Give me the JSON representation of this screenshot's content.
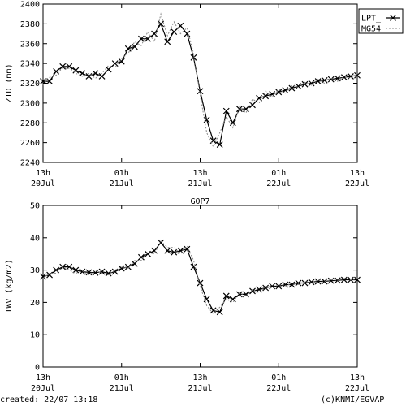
{
  "footer": {
    "created": "created: 22/07 13:18",
    "credit": "(c)KNMI/EGVAP"
  },
  "colors": {
    "lpt": "#000000",
    "mg54": "#888888",
    "axes": "#000000"
  },
  "chart_data": [
    {
      "type": "line",
      "title": "",
      "ylabel": "ZTD (mm)",
      "xlabel": "",
      "ylim": [
        2240,
        2400
      ],
      "xlim": [
        0,
        48
      ],
      "yticks": [
        2240,
        2260,
        2280,
        2300,
        2320,
        2340,
        2360,
        2380,
        2400
      ],
      "xticks": [
        {
          "x": 0,
          "line1": "13h",
          "line2": "20Jul"
        },
        {
          "x": 12,
          "line1": "01h",
          "line2": "21Jul"
        },
        {
          "x": 24,
          "line1": "13h",
          "line2": "21Jul"
        },
        {
          "x": 36,
          "line1": "01h",
          "line2": "22Jul"
        },
        {
          "x": 48,
          "line1": "13h",
          "line2": "22Jul"
        }
      ],
      "grid": false,
      "legend_position": "outside-top-right",
      "series": [
        {
          "name": "LPT_",
          "style": "solid-x",
          "x": [
            0,
            1,
            2,
            3,
            4,
            5,
            6,
            7,
            8,
            9,
            10,
            11,
            12,
            13,
            14,
            15,
            16,
            17,
            18,
            19,
            20,
            21,
            22,
            23,
            24,
            25,
            26,
            27,
            28,
            29,
            30,
            31,
            32,
            33,
            34,
            35,
            36,
            37,
            38,
            39,
            40,
            41,
            42,
            43,
            44,
            45,
            46,
            47,
            48
          ],
          "y": [
            2322,
            2322,
            2332,
            2337,
            2337,
            2333,
            2330,
            2327,
            2330,
            2327,
            2334,
            2340,
            2342,
            2355,
            2357,
            2365,
            2365,
            2370,
            2380,
            2362,
            2372,
            2378,
            2370,
            2346,
            2312,
            2283,
            2262,
            2258,
            2292,
            2280,
            2294,
            2294,
            2298,
            2305,
            2307,
            2309,
            2311,
            2313,
            2315,
            2317,
            2319,
            2320,
            2322,
            2323,
            2324,
            2325,
            2326,
            2327,
            2328
          ]
        },
        {
          "name": "MG54",
          "style": "dashed",
          "x": [
            0,
            1,
            2,
            3,
            4,
            5,
            6,
            7,
            8,
            9,
            10,
            11,
            12,
            13,
            14,
            15,
            16,
            17,
            18,
            19,
            20,
            21,
            22,
            23,
            24,
            25,
            26,
            27,
            28,
            29,
            30,
            31,
            32,
            33,
            34,
            35,
            36,
            37,
            38,
            39,
            40,
            41,
            42,
            43,
            44,
            45,
            46,
            47,
            48
          ],
          "y": [
            2318,
            2326,
            2328,
            2336,
            2335,
            2330,
            2327,
            2330,
            2325,
            2330,
            2338,
            2336,
            2345,
            2350,
            2362,
            2358,
            2372,
            2362,
            2390,
            2368,
            2382,
            2370,
            2376,
            2350,
            2308,
            2270,
            2256,
            2270,
            2286,
            2275,
            2296,
            2290,
            2304,
            2300,
            2312,
            2306,
            2314,
            2310,
            2318,
            2316,
            2321,
            2318,
            2324,
            2320,
            2325,
            2322,
            2327,
            2325,
            2329
          ]
        }
      ]
    },
    {
      "type": "line",
      "title": "GOP7",
      "ylabel": "IWV (kg/m2)",
      "xlabel": "",
      "ylim": [
        0,
        50
      ],
      "xlim": [
        0,
        48
      ],
      "yticks": [
        0,
        10,
        20,
        30,
        40,
        50
      ],
      "xticks": [
        {
          "x": 0,
          "line1": "13h",
          "line2": "20Jul"
        },
        {
          "x": 12,
          "line1": "01h",
          "line2": "21Jul"
        },
        {
          "x": 24,
          "line1": "13h",
          "line2": "21Jul"
        },
        {
          "x": 36,
          "line1": "01h",
          "line2": "22Jul"
        },
        {
          "x": 48,
          "line1": "13h",
          "line2": "22Jul"
        }
      ],
      "grid": false,
      "series": [
        {
          "name": "",
          "style": "solid-x",
          "x": [
            0,
            1,
            2,
            3,
            4,
            5,
            6,
            7,
            8,
            9,
            10,
            11,
            12,
            13,
            14,
            15,
            16,
            17,
            18,
            19,
            20,
            21,
            22,
            23,
            24,
            25,
            26,
            27,
            28,
            29,
            30,
            31,
            32,
            33,
            34,
            35,
            36,
            37,
            38,
            39,
            40,
            41,
            42,
            43,
            44,
            45,
            46,
            47,
            48
          ],
          "y": [
            28,
            28.5,
            30,
            31,
            31,
            30,
            29.5,
            29.3,
            29.2,
            29.5,
            29,
            29.5,
            30.5,
            31,
            32,
            34,
            35,
            36,
            38.5,
            36,
            35.5,
            36,
            36.5,
            31,
            26,
            21,
            17.5,
            17,
            22,
            21,
            22.5,
            22.5,
            23.5,
            24,
            24.5,
            25,
            25,
            25.5,
            25.5,
            26,
            26,
            26.3,
            26.5,
            26.5,
            26.7,
            26.8,
            27,
            27,
            27
          ]
        },
        {
          "name": "",
          "style": "dashed",
          "x": [
            0,
            1,
            2,
            3,
            4,
            5,
            6,
            7,
            8,
            9,
            10,
            11,
            12,
            13,
            14,
            15,
            16,
            17,
            18,
            19,
            20,
            21,
            22,
            23,
            24,
            25,
            26,
            27,
            28,
            29,
            30,
            31,
            32,
            33,
            34,
            35,
            36,
            37,
            38,
            39,
            40,
            41,
            42,
            43,
            44,
            45,
            46,
            47,
            48
          ],
          "y": [
            27.5,
            29,
            29,
            31,
            30,
            29,
            29.8,
            28.5,
            30,
            29,
            28.5,
            30,
            31,
            30.5,
            33,
            33,
            35.5,
            35,
            39,
            37,
            37,
            35,
            37.5,
            33,
            25,
            19,
            16.5,
            18.5,
            21,
            20,
            23,
            22,
            24,
            23,
            25,
            24.5,
            25.5,
            25,
            26,
            25.5,
            26.5,
            26,
            27,
            26.5,
            27,
            26.8,
            27.5,
            27,
            27.3
          ]
        }
      ]
    }
  ]
}
